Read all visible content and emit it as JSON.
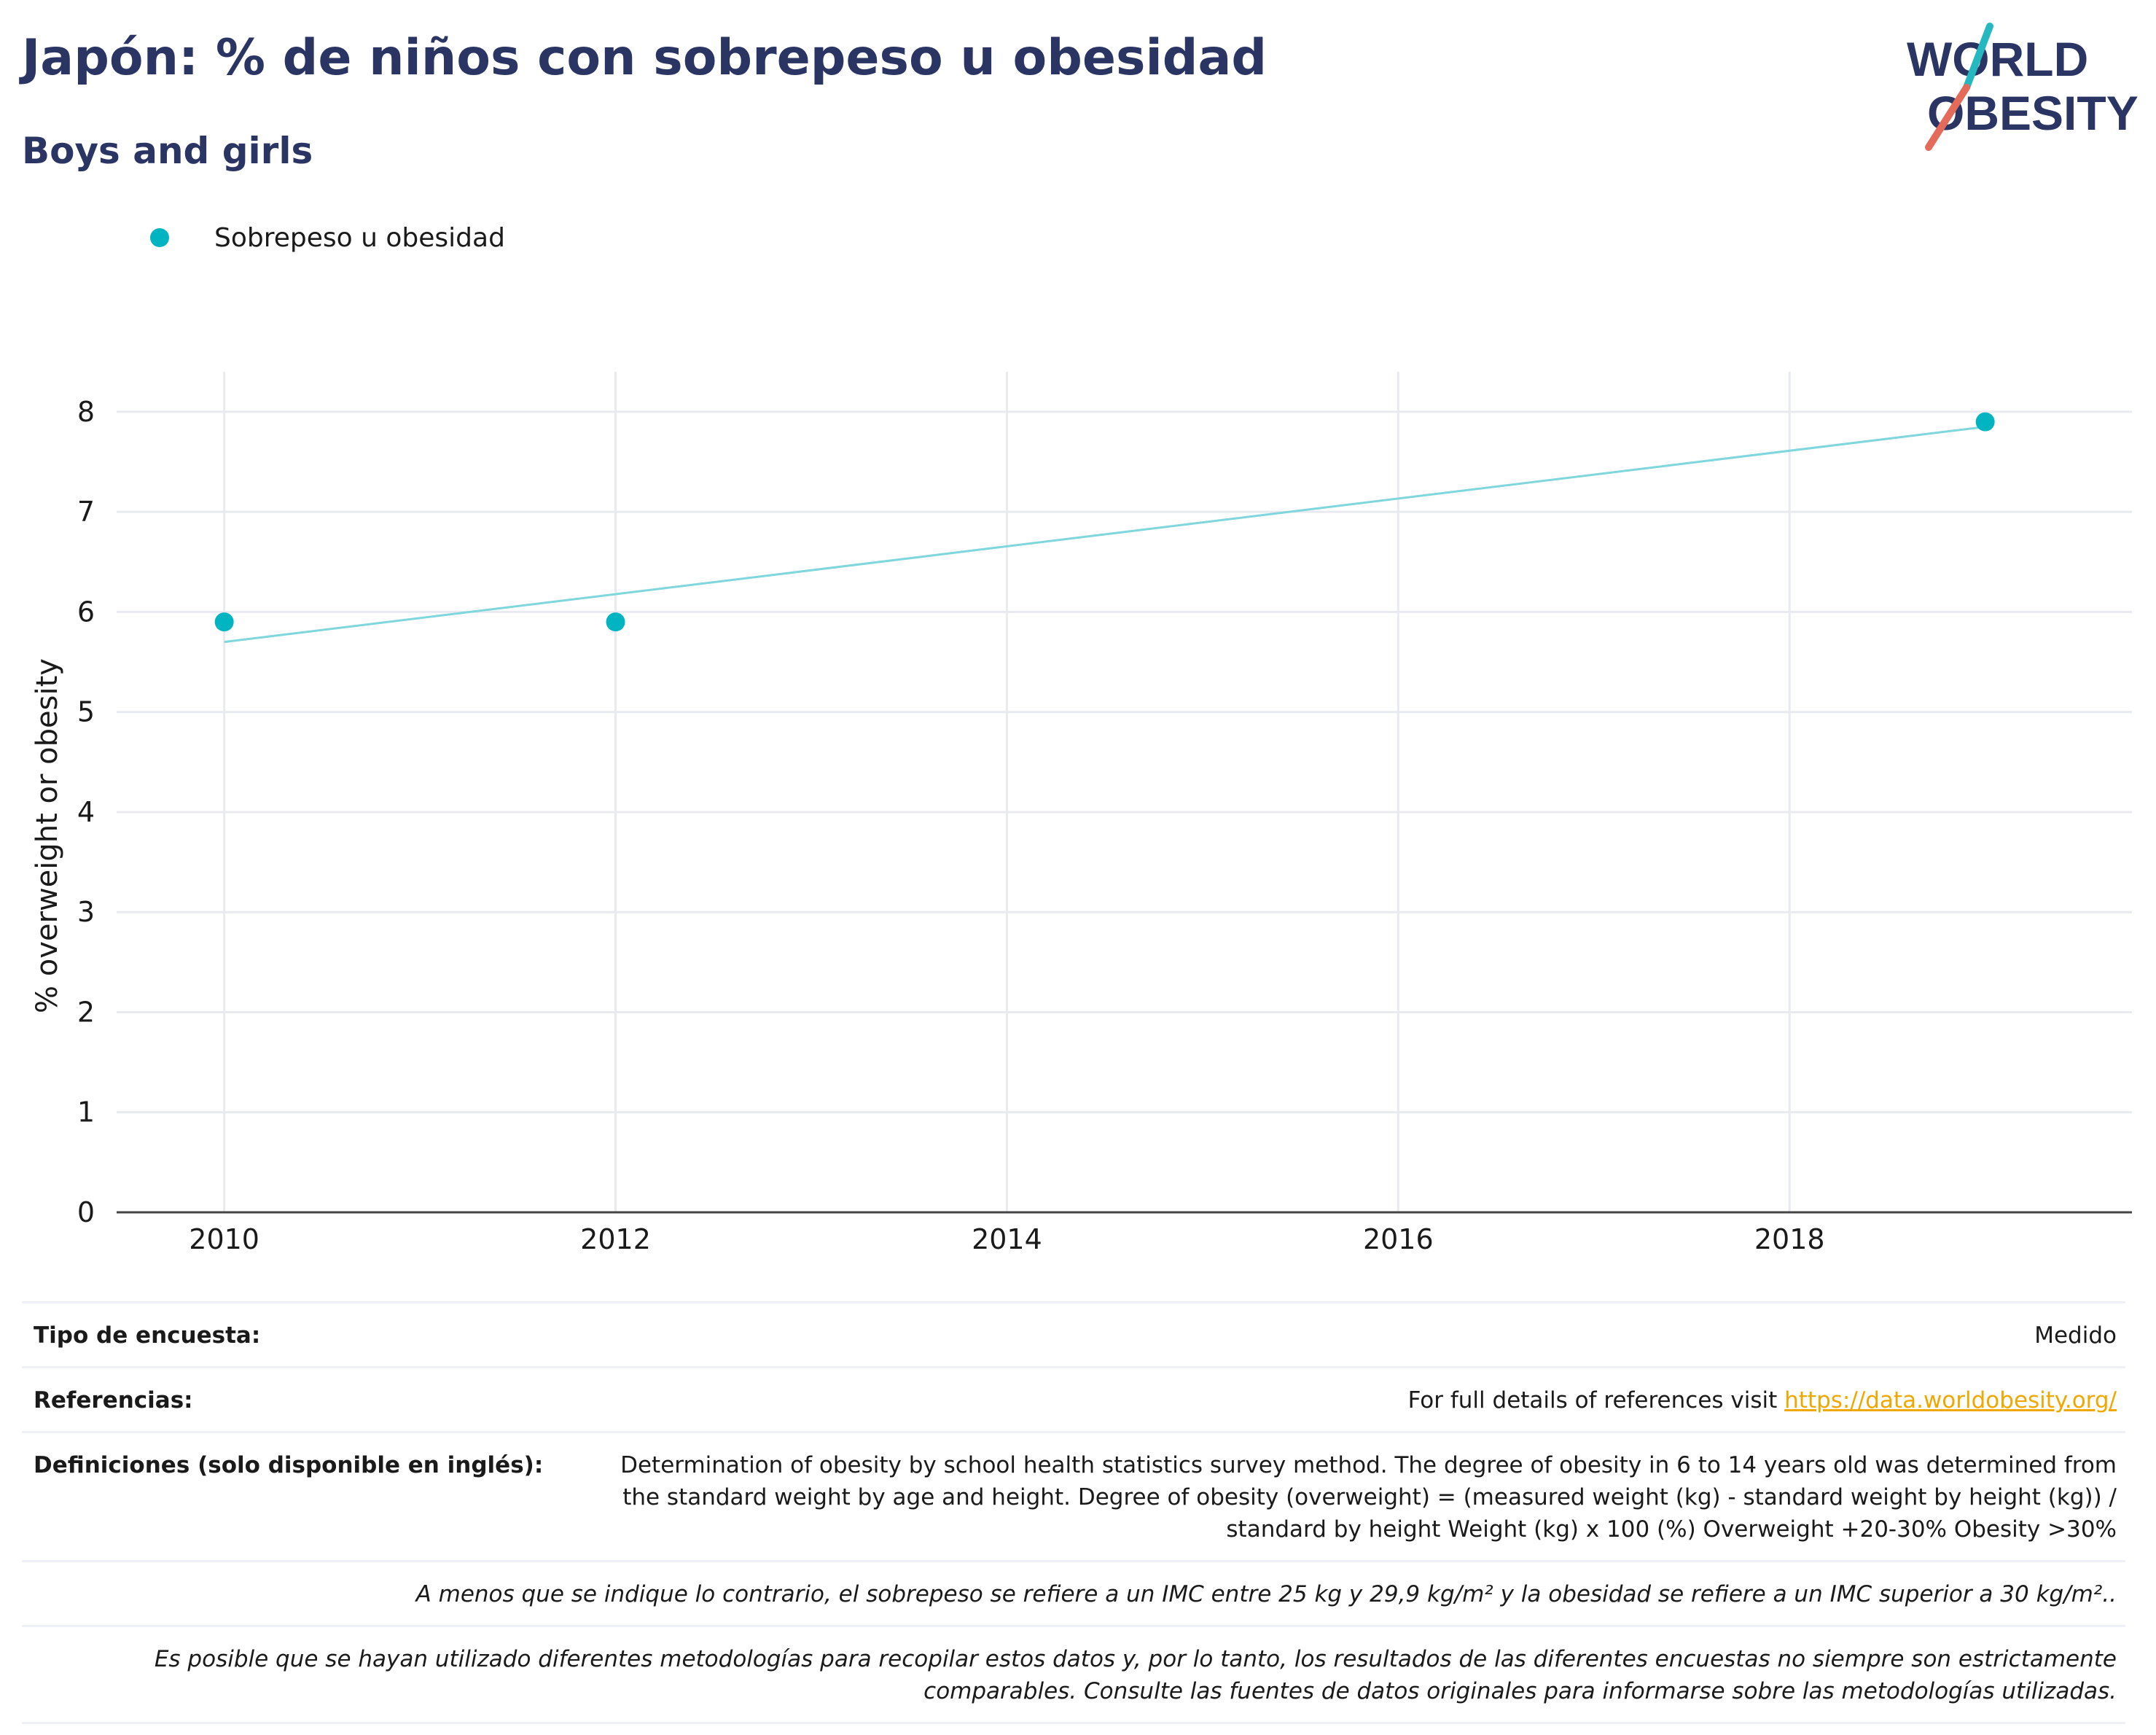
{
  "header": {
    "title": "Japón: % de niños con sobrepeso u obesidad",
    "subtitle": "Boys and girls"
  },
  "logo": {
    "line1": "WORLD",
    "line2": "OBESITY",
    "colors": {
      "text": "#2b3563",
      "slash_teal": "#25b8bf",
      "slash_coral": "#e46a5a"
    }
  },
  "legend": {
    "label": "Sobrepeso u obesidad",
    "color": "#00b5c1"
  },
  "chart_data": {
    "type": "scatter",
    "title": "",
    "xlabel": "",
    "ylabel": "% overweight or obesity",
    "xlim": [
      2009.45,
      2019.75
    ],
    "ylim": [
      0,
      8.4
    ],
    "xticks": [
      2010,
      2012,
      2014,
      2016,
      2018
    ],
    "yticks": [
      0,
      1,
      2,
      3,
      4,
      5,
      6,
      7,
      8
    ],
    "grid": true,
    "legend_position": "top-left",
    "series": [
      {
        "name": "Sobrepeso u obesidad",
        "color": "#00b5c1",
        "x": [
          2010,
          2012,
          2019
        ],
        "y": [
          5.9,
          5.9,
          7.9
        ]
      }
    ],
    "trendline": {
      "color": "#7fd6dc",
      "x": [
        2010,
        2019
      ],
      "y": [
        5.7,
        7.85
      ]
    }
  },
  "info": {
    "survey_type_label": "Tipo de encuesta:",
    "survey_type_value": "Medido",
    "references_label": "Referencias:",
    "references_text": "For full details of references visit ",
    "references_link": "https://data.worldobesity.org/",
    "definitions_label": "Definiciones (solo disponible en inglés):",
    "definitions_value": "Determination of obesity by school health statistics survey method. The degree of obesity in 6 to 14 years old was determined from the standard weight by age and height. Degree of obesity (overweight) = (measured weight (kg) - standard weight by height (kg)) / standard by height Weight (kg) x 100 (%) Overweight +20-30% Obesity >30%",
    "note_bmi": "A menos que se indique lo contrario, el sobrepeso se refiere a un IMC entre 25 kg y 29,9 kg/m² y la obesidad se refiere a un IMC superior a 30 kg/m²..",
    "note_methods": "Es posible que se hayan utilizado diferentes metodologías para recopilar estos datos y, por lo tanto, los resultados de las diferentes encuestas no siempre son estrictamente comparables. Consulte las fuentes de datos originales para informarse sobre las metodologías utilizadas."
  }
}
